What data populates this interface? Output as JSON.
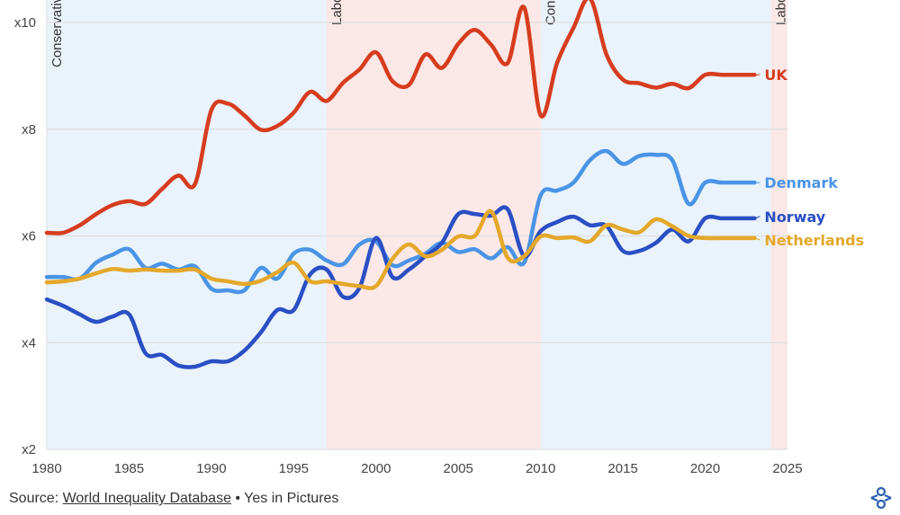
{
  "chart_data": {
    "type": "line",
    "title": "",
    "xlabel": "",
    "ylabel": "",
    "xlim": [
      1980,
      2025
    ],
    "ylim": [
      2,
      10
    ],
    "x_ticks": [
      "1980",
      "1985",
      "1990",
      "1995",
      "2000",
      "2005",
      "2010",
      "2015",
      "2020",
      "2025"
    ],
    "y_ticks": [
      {
        "value": 2,
        "label": "x2"
      },
      {
        "value": 4,
        "label": "x4"
      },
      {
        "value": 6,
        "label": "x6"
      },
      {
        "value": 8,
        "label": "x8"
      },
      {
        "value": 10,
        "label": "x10"
      }
    ],
    "grid": "horizontal",
    "legend": "direct labels at line ends (right)",
    "regions": [
      {
        "label": "Conservative",
        "start": 1980,
        "end": 1997,
        "color": "#eaf3fb"
      },
      {
        "label": "Labour",
        "start": 1997,
        "end": 2010,
        "color": "#fbe8e7"
      },
      {
        "label": "Conservative",
        "start": 2010,
        "end": 2024,
        "color": "#eaf3fb"
      },
      {
        "label": "Labour",
        "start": 2024,
        "end": 2025,
        "color": "#fbe8e7"
      }
    ],
    "x": [
      1980,
      1981,
      1982,
      1983,
      1984,
      1985,
      1986,
      1987,
      1988,
      1989,
      1990,
      1991,
      1992,
      1993,
      1994,
      1995,
      1996,
      1997,
      1998,
      1999,
      2000,
      2001,
      2002,
      2003,
      2004,
      2005,
      2006,
      2007,
      2008,
      2009,
      2010,
      2011,
      2012,
      2013,
      2014,
      2015,
      2016,
      2017,
      2018,
      2019,
      2020,
      2021,
      2022,
      2023
    ],
    "series": [
      {
        "name": "UK",
        "color": "#d63c1e",
        "values": [
          6.06,
          6.06,
          6.2,
          6.41,
          6.58,
          6.65,
          6.6,
          6.88,
          7.13,
          6.97,
          8.36,
          8.48,
          8.26,
          7.99,
          8.06,
          8.31,
          8.7,
          8.53,
          8.87,
          9.12,
          9.44,
          8.9,
          8.83,
          9.4,
          9.15,
          9.6,
          9.86,
          9.58,
          9.24,
          10.28,
          8.26,
          9.24,
          9.9,
          10.45,
          9.4,
          8.93,
          8.86,
          8.78,
          8.85,
          8.77,
          9.02,
          9.02,
          9.02,
          9.02
        ]
      },
      {
        "name": "Denmark",
        "color": "#4a94e6",
        "values": [
          5.23,
          5.23,
          5.2,
          5.5,
          5.65,
          5.75,
          5.4,
          5.48,
          5.37,
          5.43,
          5.01,
          4.98,
          4.98,
          5.4,
          5.2,
          5.67,
          5.74,
          5.54,
          5.47,
          5.84,
          5.9,
          5.45,
          5.54,
          5.67,
          5.87,
          5.7,
          5.75,
          5.58,
          5.79,
          5.5,
          6.76,
          6.85,
          7.0,
          7.42,
          7.59,
          7.35,
          7.5,
          7.52,
          7.42,
          6.6,
          7.0,
          7.0,
          7.0,
          7.0
        ]
      },
      {
        "name": "Norway",
        "color": "#2a4fc4",
        "values": [
          4.81,
          4.69,
          4.53,
          4.39,
          4.49,
          4.53,
          3.8,
          3.77,
          3.57,
          3.55,
          3.65,
          3.65,
          3.85,
          4.19,
          4.61,
          4.61,
          5.28,
          5.37,
          4.86,
          5.03,
          5.96,
          5.23,
          5.37,
          5.62,
          5.87,
          6.41,
          6.41,
          6.38,
          6.5,
          5.62,
          6.09,
          6.26,
          6.36,
          6.2,
          6.19,
          5.72,
          5.72,
          5.87,
          6.12,
          5.9,
          6.33,
          6.33,
          6.33,
          6.33
        ]
      },
      {
        "name": "Netherlands",
        "color": "#e4a82a",
        "values": [
          5.13,
          5.15,
          5.2,
          5.3,
          5.38,
          5.35,
          5.37,
          5.35,
          5.35,
          5.37,
          5.2,
          5.15,
          5.1,
          5.16,
          5.32,
          5.5,
          5.15,
          5.15,
          5.1,
          5.06,
          5.06,
          5.57,
          5.84,
          5.62,
          5.74,
          5.99,
          6.0,
          6.46,
          5.59,
          5.62,
          5.99,
          5.96,
          5.97,
          5.9,
          6.2,
          6.12,
          6.07,
          6.31,
          6.18,
          6.0,
          5.96,
          5.96,
          5.96,
          5.96
        ]
      }
    ]
  },
  "footer": {
    "source_prefix": "Source: ",
    "source_link": "World Inequality Database",
    "separator": " • ",
    "publisher": "Yes in Pictures"
  },
  "logo": {
    "icon": "yes-in-pictures-logo-icon",
    "color": "#2a5fb0"
  }
}
